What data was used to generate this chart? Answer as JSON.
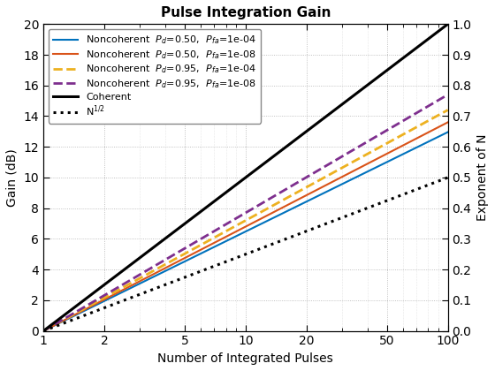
{
  "title": "Pulse Integration Gain",
  "xlabel": "Number of Integrated Pulses",
  "ylabel_left": "Gain (dB)",
  "ylabel_right": "Exponent of N",
  "xlim": [
    1,
    100
  ],
  "ylim_left": [
    0,
    20
  ],
  "ylim_right": [
    0,
    1
  ],
  "xticks": [
    1,
    2,
    5,
    10,
    20,
    50,
    100
  ],
  "yticks_left": [
    0,
    2,
    4,
    6,
    8,
    10,
    12,
    14,
    16,
    18,
    20
  ],
  "yticks_right": [
    0,
    0.1,
    0.2,
    0.3,
    0.4,
    0.5,
    0.6,
    0.7,
    0.8,
    0.9,
    1.0
  ],
  "lines": [
    {
      "label": "Noncoherent  $P_d$=0.50,  $P_{fa}$=1e-04",
      "color": "#0072BD",
      "linestyle": "solid",
      "linewidth": 1.5,
      "exponent": 0.648
    },
    {
      "label": "Noncoherent  $P_d$=0.50,  $P_{fa}$=1e-08",
      "color": "#D95319",
      "linestyle": "solid",
      "linewidth": 1.5,
      "exponent": 0.68
    },
    {
      "label": "Noncoherent  $P_d$=0.95,  $P_{fa}$=1e-04",
      "color": "#EDB120",
      "linestyle": "dashed",
      "linewidth": 2.0,
      "exponent": 0.72
    },
    {
      "label": "Noncoherent  $P_d$=0.95,  $P_{fa}$=1e-08",
      "color": "#7E2F8E",
      "linestyle": "dashed",
      "linewidth": 2.0,
      "exponent": 0.77
    }
  ],
  "coherent_color": "#000000",
  "coherent_linestyle": "solid",
  "coherent_linewidth": 2.2,
  "coherent_label": "Coherent",
  "sqrt_color": "#000000",
  "sqrt_linestyle": "dotted",
  "sqrt_linewidth": 2.2,
  "sqrt_label": "N$^{1/2}$",
  "background_color": "#ffffff",
  "grid_major_color": "#b0b0b0",
  "grid_minor_color": "#d0d0d0"
}
